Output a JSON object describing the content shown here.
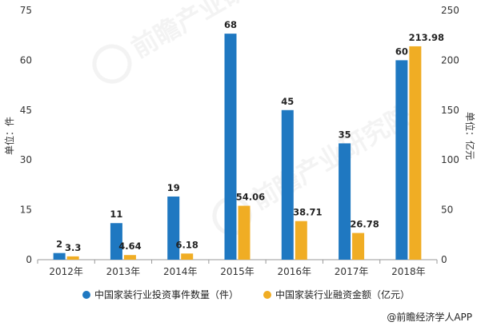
{
  "chart_data": {
    "type": "bar",
    "categories": [
      "2012年",
      "2013年",
      "2014年",
      "2015年",
      "2016年",
      "2017年",
      "2018年"
    ],
    "series": [
      {
        "name": "中国家装行业投资事件数量（件）",
        "axis": "left",
        "color": "#1f78c1",
        "values": [
          2,
          11,
          19,
          68,
          45,
          35,
          60
        ],
        "labels": [
          "2",
          "11",
          "19",
          "68",
          "45",
          "35",
          "60"
        ]
      },
      {
        "name": "中国家装行业融资金额（亿元）",
        "axis": "right",
        "color": "#f0ad24",
        "values": [
          3.3,
          4.64,
          6.18,
          54.06,
          38.71,
          26.78,
          213.98
        ],
        "labels": [
          "3.3",
          "4.64",
          "6.18",
          "54.06",
          "38.71",
          "26.78",
          "213.98"
        ]
      }
    ],
    "y_left": {
      "label": "单位：件",
      "ylim": [
        0,
        75
      ],
      "ticks": [
        "0",
        "15",
        "30",
        "45",
        "60",
        "75"
      ]
    },
    "y_right": {
      "label": "单位：亿元",
      "ylim": [
        0,
        250
      ],
      "ticks": [
        "0",
        "50",
        "100",
        "150",
        "200",
        "250"
      ]
    },
    "grid": false,
    "legend": "bottom"
  },
  "credit": {
    "text": "@前瞻经济学人APP"
  },
  "watermark": "前瞻产业研究院"
}
